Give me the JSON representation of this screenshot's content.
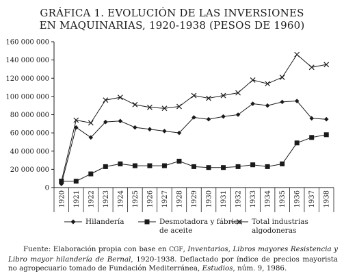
{
  "title_line1": "GRÁFICA 1. EVOLUCIÓN DE LAS INVERSIONES",
  "title_line2": "EN MAQUINARIAS, 1920-1938 (PESOS DE 1960)",
  "chart_data": {
    "type": "line",
    "x": [
      "1920",
      "1921",
      "1922",
      "1923",
      "1924",
      "1925",
      "1926",
      "1927",
      "1928",
      "1929",
      "1930",
      "1931",
      "1932",
      "1933",
      "1934",
      "1935",
      "1936",
      "1937",
      "1938"
    ],
    "ylim": [
      0,
      160000000
    ],
    "yticks": [
      0,
      20000000,
      40000000,
      60000000,
      80000000,
      100000000,
      120000000,
      140000000,
      160000000
    ],
    "ytick_labels": [
      "0",
      "20 000 000",
      "40 000 000",
      "60 000 000",
      "80 000 000",
      "100 000 000",
      "120 000 000",
      "140 000 000",
      "160 000 000"
    ],
    "grid": false,
    "legend_position": "bottom",
    "series": [
      {
        "name": "Hilandería",
        "marker": "diamond",
        "values": [
          4000000,
          66000000,
          55000000,
          72000000,
          73000000,
          66000000,
          64000000,
          62000000,
          60000000,
          77000000,
          75000000,
          78000000,
          80000000,
          92000000,
          90000000,
          94000000,
          95000000,
          76000000,
          75000000
        ]
      },
      {
        "name": "Desmotadora y fábrica de aceite",
        "marker": "square",
        "legend_line1": "Desmotadora y fábrica",
        "legend_line2": "de aceite",
        "values": [
          7000000,
          7000000,
          15000000,
          23000000,
          26000000,
          24000000,
          24000000,
          24000000,
          29000000,
          23000000,
          22000000,
          22000000,
          23000000,
          25000000,
          23000000,
          26000000,
          49000000,
          55000000,
          58000000
        ]
      },
      {
        "name": "Total industrias algodoneras",
        "marker": "cross",
        "legend_line1": "Total industrias",
        "legend_line2": "algodoneras",
        "values": [
          7000000,
          74000000,
          71000000,
          96000000,
          99000000,
          91000000,
          88000000,
          87000000,
          89000000,
          101000000,
          98000000,
          101000000,
          104000000,
          118000000,
          114000000,
          121000000,
          146000000,
          132000000,
          135000000
        ]
      }
    ]
  },
  "source": {
    "p1": "Fuente: Elaboración propia con base en ",
    "cgf": "CGF",
    "p2": ", ",
    "italic1": "Inventarios, Libros mayores Resistencia y Libro mayor hilandería de Bernal",
    "p3": ", 1920-1938. Deflactado por índice de precios mayorista no agropecuario tomado de Fundación Mediterránea, ",
    "italic2": "Estudios",
    "p4": ", núm. 9, 1986."
  },
  "colors": {
    "ink": "#1a1a1a",
    "background": "#ffffff"
  }
}
